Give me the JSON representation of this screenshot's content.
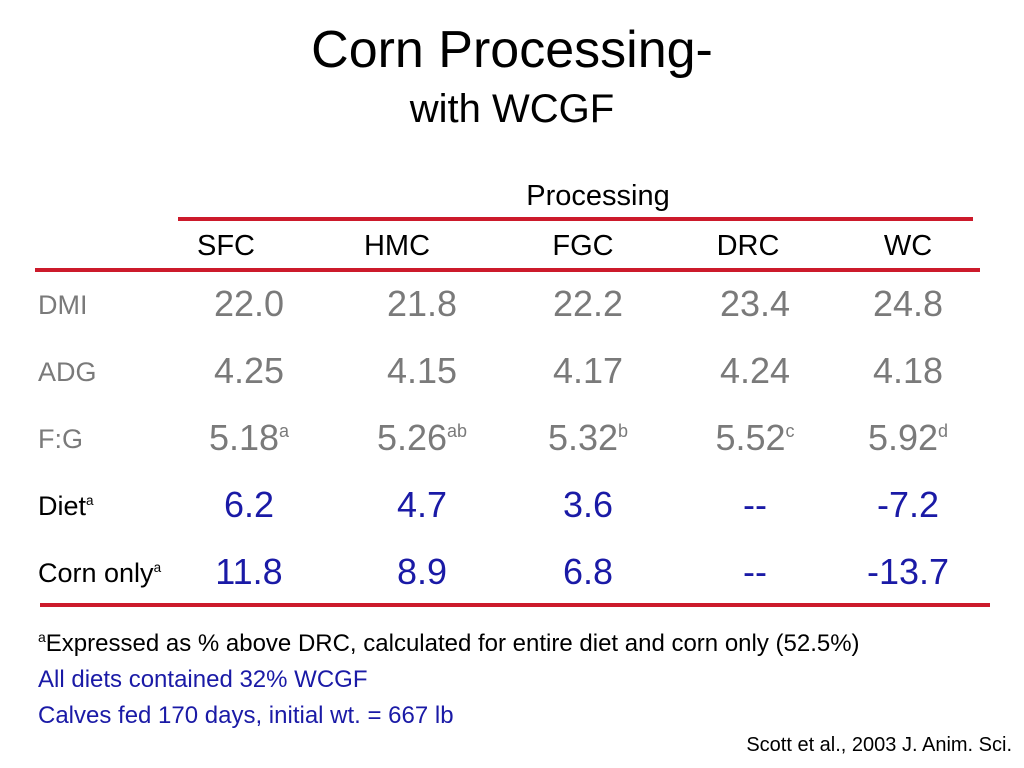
{
  "title": "Corn Processing-",
  "subtitle": "with WCGF",
  "group_header": "Processing",
  "columns": [
    "SFC",
    "HMC",
    "FGC",
    "DRC",
    "WC"
  ],
  "rows": [
    {
      "label": "DMI",
      "label_sup": "",
      "values": [
        "22.0",
        "21.8",
        "22.2",
        "23.4",
        "24.8"
      ],
      "sups": [
        "",
        "",
        "",
        "",
        ""
      ]
    },
    {
      "label": "ADG",
      "label_sup": "",
      "values": [
        "4.25",
        "4.15",
        "4.17",
        "4.24",
        "4.18"
      ],
      "sups": [
        "",
        "",
        "",
        "",
        ""
      ]
    },
    {
      "label": "F:G",
      "label_sup": "",
      "values": [
        "5.18",
        "5.26",
        "5.32",
        "5.52",
        "5.92"
      ],
      "sups": [
        "a",
        "ab",
        "b",
        "c",
        "d"
      ]
    },
    {
      "label": "Diet",
      "label_sup": "a",
      "values": [
        "6.2",
        "4.7",
        "3.6",
        "--",
        "-7.2"
      ],
      "sups": [
        "",
        "",
        "",
        "",
        ""
      ]
    },
    {
      "label": "Corn only",
      "label_sup": "a",
      "values": [
        "11.8",
        "8.9",
        "6.8",
        "--",
        "-13.7"
      ],
      "sups": [
        "",
        "",
        "",
        "",
        ""
      ]
    }
  ],
  "footnote": {
    "sup": "a",
    "text": "Expressed as % above DRC, calculated for entire diet and corn only (52.5%)"
  },
  "notes": [
    "All diets contained 32% WCGF",
    "Calves fed 170 days, initial wt. = 667 lb"
  ],
  "citation": "Scott et al., 2003 J. Anim. Sci.",
  "colors": {
    "rule": "#cc1a2b",
    "gray_text": "#7a7a7a",
    "blue_text": "#1a1aa6",
    "black_text": "#000000"
  }
}
